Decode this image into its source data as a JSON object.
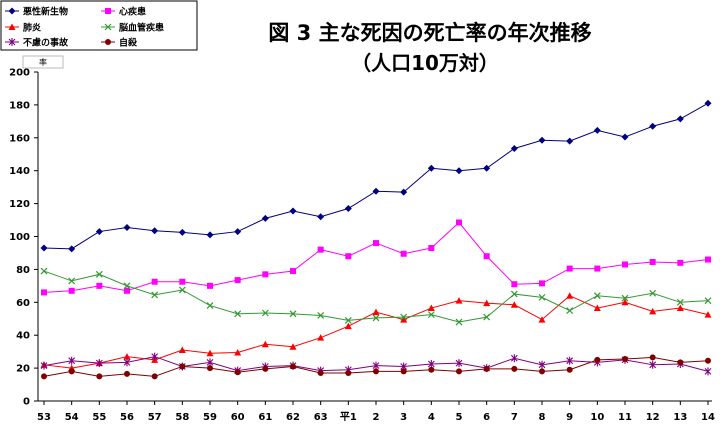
{
  "chart_data": {
    "type": "line",
    "title": "図 3 主な死因の死亡率の年次推移",
    "subtitle": "（人口10万対）",
    "ylabel": "率",
    "xlabel": "",
    "ylim": [
      0,
      200
    ],
    "yticks": [
      0,
      20,
      40,
      60,
      80,
      100,
      120,
      140,
      160,
      180,
      200
    ],
    "grid": false,
    "legend_position": "top-left",
    "categories": [
      "53",
      "54",
      "55",
      "56",
      "57",
      "58",
      "59",
      "60",
      "61",
      "62",
      "63",
      "平1",
      "2",
      "3",
      "4",
      "5",
      "6",
      "7",
      "8",
      "9",
      "10",
      "11",
      "12",
      "13",
      "14"
    ],
    "series": [
      {
        "name": "悪性新生物",
        "color": "#000080",
        "marker": "diamond",
        "values": [
          93,
          92.5,
          103,
          105.5,
          103.5,
          102.5,
          101,
          103,
          111,
          115.5,
          112,
          117,
          127.5,
          127,
          141.5,
          140,
          141.5,
          153.5,
          158.5,
          158,
          164.5,
          160.5,
          167,
          171.5,
          181
        ]
      },
      {
        "name": "心疾患",
        "color": "#ff00ff",
        "marker": "square",
        "values": [
          66,
          67,
          70,
          67,
          72.5,
          72.5,
          70,
          73.5,
          77,
          79,
          92,
          88,
          96,
          89.5,
          93,
          108.5,
          88,
          71,
          71.5,
          80.5,
          80.5,
          83,
          84.5,
          84,
          86
        ]
      },
      {
        "name": "肺炎",
        "color": "#ff0000",
        "marker": "triangle",
        "values": [
          22,
          20,
          23,
          27,
          25,
          31,
          29,
          29.5,
          34.5,
          33,
          38.5,
          45.5,
          54,
          49.5,
          56.5,
          61,
          59.5,
          58.5,
          49.5,
          64,
          56.5,
          60,
          54.5,
          56.5,
          52.5
        ]
      },
      {
        "name": "脳血管疾患",
        "color": "#339933",
        "marker": "x",
        "values": [
          79,
          73,
          77,
          70,
          64.5,
          67.5,
          58,
          53,
          53.5,
          53,
          52,
          49,
          50.5,
          51,
          52.5,
          48,
          51,
          65,
          63,
          55,
          64,
          62.5,
          65.5,
          60,
          61
        ]
      },
      {
        "name": "不慮の事故",
        "color": "#800080",
        "marker": "star",
        "values": [
          21.5,
          24.5,
          23,
          23.5,
          27,
          21,
          23.5,
          18.5,
          21,
          21.5,
          18.5,
          19,
          21.5,
          21,
          22.5,
          23,
          20,
          26,
          22,
          24.5,
          23.5,
          25,
          22,
          22.5,
          18
        ]
      },
      {
        "name": "自殺",
        "color": "#800000",
        "marker": "circle",
        "values": [
          15,
          18,
          15,
          16.5,
          15,
          21,
          20,
          17.5,
          19.5,
          21,
          17,
          17,
          18,
          18,
          19,
          18,
          19.5,
          19.5,
          18,
          19,
          25,
          25.5,
          26.5,
          23.5,
          24.5
        ]
      }
    ]
  }
}
